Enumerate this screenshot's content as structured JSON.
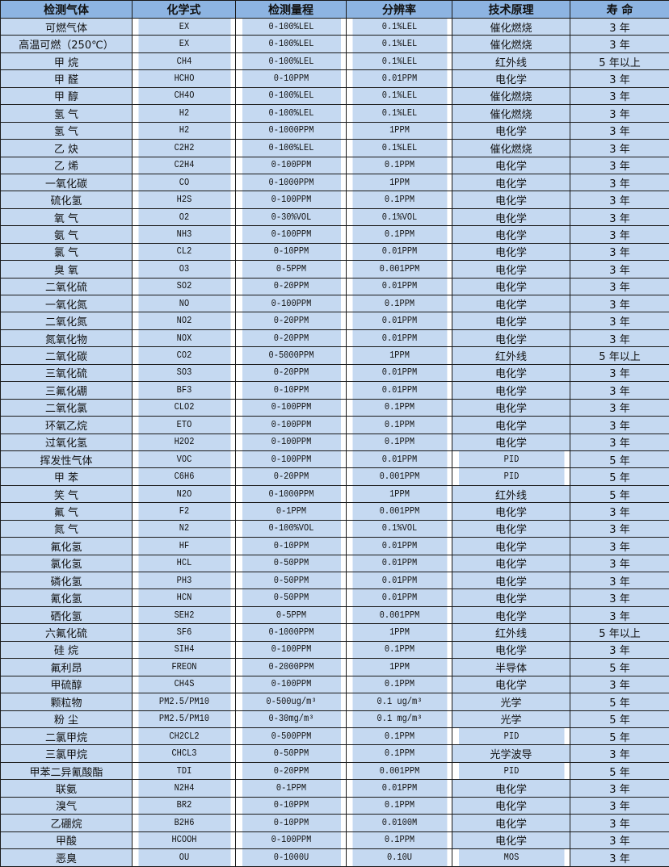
{
  "colors": {
    "header_bg": "#8DB4E2",
    "row_bg": "#C5D9F1",
    "border": "#1a1a1a"
  },
  "headers": [
    "检测气体",
    "化学式",
    "检测量程",
    "分辨率",
    "技术原理",
    "寿 命"
  ],
  "rows": [
    [
      "可燃气体",
      "EX",
      "0-100%LEL",
      "0.1%LEL",
      "催化燃烧",
      "3 年"
    ],
    [
      "高温可燃（250℃）",
      "EX",
      "0-100%LEL",
      "0.1%LEL",
      "催化燃烧",
      "3 年"
    ],
    [
      "甲 烷",
      "CH4",
      "0-100%LEL",
      "0.1%LEL",
      "红外线",
      "5 年以上"
    ],
    [
      "甲 醛",
      "HCHO",
      "0-10PPM",
      "0.01PPM",
      "电化学",
      "3 年"
    ],
    [
      "甲 醇",
      "CH4O",
      "0-100%LEL",
      "0.1%LEL",
      "催化燃烧",
      "3 年"
    ],
    [
      "氢 气",
      "H2",
      "0-100%LEL",
      "0.1%LEL",
      "催化燃烧",
      "3 年"
    ],
    [
      "氢 气",
      "H2",
      "0-1000PPM",
      "1PPM",
      "电化学",
      "3 年"
    ],
    [
      "乙 炔",
      "C2H2",
      "0-100%LEL",
      "0.1%LEL",
      "催化燃烧",
      "3 年"
    ],
    [
      "乙 烯",
      "C2H4",
      "0-100PPM",
      "0.1PPM",
      "电化学",
      "3 年"
    ],
    [
      "一氧化碳",
      "CO",
      "0-1000PPM",
      "1PPM",
      "电化学",
      "3 年"
    ],
    [
      "硫化氢",
      "H2S",
      "0-100PPM",
      "0.1PPM",
      "电化学",
      "3 年"
    ],
    [
      "氧 气",
      "O2",
      "0-30%VOL",
      "0.1%VOL",
      "电化学",
      "3 年"
    ],
    [
      "氨 气",
      "NH3",
      "0-100PPM",
      "0.1PPM",
      "电化学",
      "3 年"
    ],
    [
      "氯 气",
      "CL2",
      "0-10PPM",
      "0.01PPM",
      "电化学",
      "3 年"
    ],
    [
      "臭 氧",
      "O3",
      "0-5PPM",
      "0.001PPM",
      "电化学",
      "3 年"
    ],
    [
      "二氧化硫",
      "SO2",
      "0-20PPM",
      "0.01PPM",
      "电化学",
      "3 年"
    ],
    [
      "一氧化氮",
      "NO",
      "0-100PPM",
      "0.1PPM",
      "电化学",
      "3 年"
    ],
    [
      "二氧化氮",
      "NO2",
      "0-20PPM",
      "0.01PPM",
      "电化学",
      "3 年"
    ],
    [
      "氮氧化物",
      "NOX",
      "0-20PPM",
      "0.01PPM",
      "电化学",
      "3 年"
    ],
    [
      "二氧化碳",
      "CO2",
      "0-5000PPM",
      "1PPM",
      "红外线",
      "5 年以上"
    ],
    [
      "三氧化硫",
      "SO3",
      "0-20PPM",
      "0.01PPM",
      "电化学",
      "3 年"
    ],
    [
      "三氟化硼",
      "BF3",
      "0-10PPM",
      "0.01PPM",
      "电化学",
      "3 年"
    ],
    [
      "二氧化氯",
      "CLO2",
      "0-100PPM",
      "0.1PPM",
      "电化学",
      "3 年"
    ],
    [
      "环氧乙烷",
      "ETO",
      "0-100PPM",
      "0.1PPM",
      "电化学",
      "3 年"
    ],
    [
      "过氧化氢",
      "H2O2",
      "0-100PPM",
      "0.1PPM",
      "电化学",
      "3 年"
    ],
    [
      "挥发性气体",
      "VOC",
      "0-100PPM",
      "0.01PPM",
      "PID",
      "5 年"
    ],
    [
      "甲 苯",
      "C6H6",
      "0-20PPM",
      "0.001PPM",
      "PID",
      "5 年"
    ],
    [
      "笑 气",
      "N2O",
      "0-1000PPM",
      "1PPM",
      "红外线",
      "5 年"
    ],
    [
      "氟 气",
      "F2",
      "0-1PPM",
      "0.001PPM",
      "电化学",
      "3 年"
    ],
    [
      "氮 气",
      "N2",
      "0-100%VOL",
      "0.1%VOL",
      "电化学",
      "3 年"
    ],
    [
      "氟化氢",
      "HF",
      "0-10PPM",
      "0.01PPM",
      "电化学",
      "3 年"
    ],
    [
      "氯化氢",
      "HCL",
      "0-50PPM",
      "0.01PPM",
      "电化学",
      "3 年"
    ],
    [
      "磷化氢",
      "PH3",
      "0-50PPM",
      "0.01PPM",
      "电化学",
      "3 年"
    ],
    [
      "氰化氢",
      "HCN",
      "0-50PPM",
      "0.01PPM",
      "电化学",
      "3 年"
    ],
    [
      "硒化氢",
      "SEH2",
      "0-5PPM",
      "0.001PPM",
      "电化学",
      "3 年"
    ],
    [
      "六氟化硫",
      "SF6",
      "0-1000PPM",
      "1PPM",
      "红外线",
      "5 年以上"
    ],
    [
      "硅 烷",
      "SIH4",
      "0-100PPM",
      "0.1PPM",
      "电化学",
      "3 年"
    ],
    [
      "氟利昂",
      "FREON",
      "0-2000PPM",
      "1PPM",
      "半导体",
      "5 年"
    ],
    [
      "甲硫醇",
      "CH4S",
      "0-100PPM",
      "0.1PPM",
      "电化学",
      "3 年"
    ],
    [
      "颗粒物",
      "PM2.5/PM10",
      "0-500ug/m³",
      "0.1 ug/m³",
      "光学",
      "5 年"
    ],
    [
      "粉 尘",
      "PM2.5/PM10",
      "0-30mg/m³",
      "0.1 mg/m³",
      "光学",
      "5 年"
    ],
    [
      "二氯甲烷",
      "CH2CL2",
      "0-500PPM",
      "0.1PPM",
      "PID",
      "5 年"
    ],
    [
      "三氯甲烷",
      "CHCL3",
      "0-50PPM",
      "0.1PPM",
      "光学波导",
      "3 年"
    ],
    [
      "甲苯二异氰酸酯",
      "TDI",
      "0-20PPM",
      "0.001PPM",
      "PID",
      "5 年"
    ],
    [
      "联氨",
      "N2H4",
      "0-1PPM",
      "0.01PPM",
      "电化学",
      "3 年"
    ],
    [
      "溴气",
      "BR2",
      "0-10PPM",
      "0.1PPM",
      "电化学",
      "3 年"
    ],
    [
      "乙硼烷",
      "B2H6",
      "0-10PPM",
      "0.0100M",
      "电化学",
      "3 年"
    ],
    [
      "甲酸",
      "HCOOH",
      "0-100PPM",
      "0.1PPM",
      "电化学",
      "3 年"
    ],
    [
      "恶臭",
      "OU",
      "0-1000U",
      "0.10U",
      "MOS",
      "3 年"
    ]
  ]
}
